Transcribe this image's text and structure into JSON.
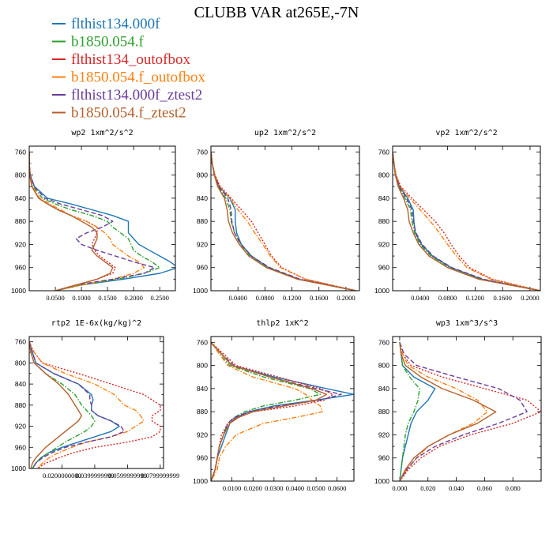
{
  "figure_title": "CLUBB VAR at265E,-7N",
  "legend": [
    {
      "label": "flthist134.000f",
      "color": "#1f77b4",
      "dash": "solid"
    },
    {
      "label": "b1850.054.f",
      "color": "#2ca02c",
      "dash": "dashdot"
    },
    {
      "label": "flthist134_outofbox",
      "color": "#d62728",
      "dash": "dotted"
    },
    {
      "label": "b1850.054.f_outofbox",
      "color": "#ff7f0e",
      "dash": "dashdot"
    },
    {
      "label": "flthist134.000f_ztest2",
      "color": "#6a3d9a",
      "dash": "dashed"
    },
    {
      "label": "b1850.054.f_ztest2",
      "color": "#b5602b",
      "dash": "solid"
    }
  ],
  "chart_data": [
    {
      "type": "line",
      "title": "wp2  1xm^2/s^2",
      "ylim": [
        1000,
        750
      ],
      "yticks": [
        "760",
        "800",
        "840",
        "880",
        "920",
        "960",
        "1000"
      ],
      "xlim": [
        0,
        0.28
      ],
      "xticks": [
        0.05,
        0.1,
        0.15,
        0.2,
        0.25
      ],
      "xtick_labels": [
        "0.0500",
        "0.1000",
        "0.1500",
        "0.2000",
        "0.2500"
      ],
      "levels": [
        760,
        780,
        800,
        820,
        840,
        850,
        860,
        870,
        880,
        890,
        900,
        910,
        920,
        930,
        940,
        950,
        960,
        970,
        980,
        990,
        1000
      ],
      "series": [
        {
          "values": [
            0,
            0,
            0.002,
            0.01,
            0.035,
            0.08,
            0.12,
            0.16,
            0.19,
            0.19,
            0.19,
            0.2,
            0.21,
            0.23,
            0.25,
            0.27,
            0.285,
            0.25,
            0.18,
            0.1,
            0.05
          ]
        },
        {
          "values": [
            0,
            0,
            0.002,
            0.008,
            0.025,
            0.05,
            0.08,
            0.12,
            0.15,
            0.16,
            0.175,
            0.19,
            0.195,
            0.2,
            0.215,
            0.235,
            0.25,
            0.22,
            0.17,
            0.1,
            0.05
          ]
        },
        {
          "values": [
            0,
            0,
            0.001,
            0.005,
            0.018,
            0.035,
            0.055,
            0.08,
            0.11,
            0.13,
            0.13,
            0.125,
            0.12,
            0.125,
            0.135,
            0.15,
            0.165,
            0.16,
            0.13,
            0.09,
            0.05
          ]
        },
        {
          "values": [
            0,
            0,
            0.002,
            0.006,
            0.02,
            0.04,
            0.06,
            0.08,
            0.11,
            0.13,
            0.145,
            0.155,
            0.16,
            0.175,
            0.19,
            0.21,
            0.22,
            0.2,
            0.16,
            0.1,
            0.05
          ]
        },
        {
          "values": [
            0,
            0,
            0.002,
            0.01,
            0.03,
            0.06,
            0.1,
            0.14,
            0.16,
            0.14,
            0.11,
            0.09,
            0.1,
            0.13,
            0.165,
            0.2,
            0.24,
            0.22,
            0.16,
            0.09,
            0.05
          ]
        },
        {
          "values": [
            0,
            0,
            0.001,
            0.005,
            0.018,
            0.035,
            0.055,
            0.08,
            0.1,
            0.12,
            0.13,
            0.13,
            0.125,
            0.12,
            0.13,
            0.145,
            0.16,
            0.155,
            0.13,
            0.09,
            0.05
          ]
        }
      ]
    },
    {
      "type": "line",
      "title": "up2  1xm^2/s^2",
      "ylim": [
        1000,
        750
      ],
      "yticks": [
        "760",
        "800",
        "840",
        "880",
        "920",
        "960",
        "1000"
      ],
      "xlim": [
        0,
        0.22
      ],
      "xticks": [
        0.04,
        0.08,
        0.12,
        0.16,
        0.2
      ],
      "xtick_labels": [
        "0.0400",
        "0.0800",
        "0.1200",
        "0.1600",
        "0.2000"
      ],
      "levels": [
        760,
        780,
        800,
        820,
        840,
        860,
        880,
        900,
        920,
        940,
        960,
        980,
        1000
      ],
      "series": [
        {
          "values": [
            0,
            0.002,
            0.005,
            0.012,
            0.028,
            0.036,
            0.036,
            0.038,
            0.045,
            0.06,
            0.085,
            0.13,
            0.215
          ]
        },
        {
          "values": [
            0,
            0.002,
            0.005,
            0.011,
            0.022,
            0.028,
            0.03,
            0.035,
            0.044,
            0.058,
            0.085,
            0.13,
            0.215
          ]
        },
        {
          "values": [
            0,
            0.002,
            0.006,
            0.014,
            0.03,
            0.045,
            0.06,
            0.07,
            0.08,
            0.09,
            0.105,
            0.14,
            0.215
          ]
        },
        {
          "values": [
            0,
            0.002,
            0.006,
            0.013,
            0.028,
            0.04,
            0.054,
            0.065,
            0.077,
            0.088,
            0.103,
            0.14,
            0.215
          ]
        },
        {
          "values": [
            0,
            0.002,
            0.005,
            0.012,
            0.025,
            0.03,
            0.031,
            0.035,
            0.045,
            0.06,
            0.087,
            0.132,
            0.215
          ]
        },
        {
          "values": [
            0,
            0.002,
            0.005,
            0.01,
            0.02,
            0.024,
            0.026,
            0.032,
            0.042,
            0.056,
            0.082,
            0.128,
            0.215
          ]
        }
      ]
    },
    {
      "type": "line",
      "title": "vp2  1xm^2/s^2",
      "ylim": [
        1000,
        750
      ],
      "yticks": [
        "760",
        "800",
        "840",
        "880",
        "920",
        "960",
        "1000"
      ],
      "xlim": [
        0,
        0.215
      ],
      "xticks": [
        0.04,
        0.08,
        0.12,
        0.16,
        0.2
      ],
      "xtick_labels": [
        "0.0400",
        "0.0800",
        "0.1200",
        "0.1600",
        "0.2000"
      ],
      "levels": [
        760,
        780,
        800,
        820,
        840,
        860,
        880,
        900,
        920,
        940,
        960,
        980,
        1000
      ],
      "series": [
        {
          "values": [
            0,
            0.002,
            0.004,
            0.01,
            0.022,
            0.03,
            0.031,
            0.033,
            0.042,
            0.058,
            0.085,
            0.13,
            0.215
          ]
        },
        {
          "values": [
            0,
            0.002,
            0.004,
            0.009,
            0.018,
            0.026,
            0.028,
            0.032,
            0.04,
            0.056,
            0.083,
            0.128,
            0.215
          ]
        },
        {
          "values": [
            0,
            0.002,
            0.005,
            0.012,
            0.028,
            0.045,
            0.062,
            0.075,
            0.085,
            0.097,
            0.112,
            0.145,
            0.215
          ]
        },
        {
          "values": [
            0,
            0.002,
            0.005,
            0.011,
            0.025,
            0.04,
            0.055,
            0.068,
            0.08,
            0.093,
            0.108,
            0.143,
            0.215
          ]
        },
        {
          "values": [
            0,
            0.002,
            0.004,
            0.01,
            0.02,
            0.028,
            0.03,
            0.034,
            0.043,
            0.059,
            0.086,
            0.132,
            0.215
          ]
        },
        {
          "values": [
            0,
            0.002,
            0.004,
            0.008,
            0.016,
            0.022,
            0.024,
            0.03,
            0.038,
            0.053,
            0.08,
            0.125,
            0.215
          ]
        }
      ]
    },
    {
      "type": "line",
      "title": "rtp2  1E-6x(kg/kg)^2",
      "ylim": [
        1000,
        750
      ],
      "yticks": [
        "760",
        "800",
        "840",
        "880",
        "920",
        "960",
        "1000"
      ],
      "xlim": [
        0,
        0.082
      ],
      "xticks": [
        0.02,
        0.04,
        0.06,
        0.08
      ],
      "xtick_labels": [
        "0.0200000000",
        "0.0399999999",
        "0.0599999999",
        "0.0799999999"
      ],
      "levels": [
        760,
        780,
        800,
        820,
        840,
        860,
        870,
        880,
        890,
        900,
        910,
        920,
        930,
        940,
        950,
        960,
        970,
        980,
        990,
        1000
      ],
      "series": [
        {
          "values": [
            0,
            0.002,
            0.004,
            0.015,
            0.03,
            0.038,
            0.039,
            0.038,
            0.038,
            0.042,
            0.05,
            0.055,
            0.05,
            0.04,
            0.03,
            0.02,
            0.012,
            0.007,
            0.004,
            0.002
          ]
        },
        {
          "values": [
            0,
            0.001,
            0.003,
            0.01,
            0.02,
            0.028,
            0.03,
            0.032,
            0.035,
            0.038,
            0.04,
            0.038,
            0.034,
            0.028,
            0.022,
            0.017,
            0.012,
            0.007,
            0.004,
            0.002
          ]
        },
        {
          "values": [
            0,
            0.003,
            0.008,
            0.03,
            0.05,
            0.07,
            0.075,
            0.08,
            0.08,
            0.075,
            0.075,
            0.08,
            0.08,
            0.075,
            0.06,
            0.04,
            0.027,
            0.018,
            0.01,
            0.005
          ]
        },
        {
          "values": [
            0,
            0.003,
            0.008,
            0.022,
            0.04,
            0.052,
            0.055,
            0.058,
            0.065,
            0.068,
            0.07,
            0.065,
            0.06,
            0.05,
            0.035,
            0.026,
            0.018,
            0.012,
            0.008,
            0.005
          ]
        },
        {
          "values": [
            0,
            0.002,
            0.004,
            0.015,
            0.03,
            0.037,
            0.037,
            0.038,
            0.038,
            0.042,
            0.05,
            0.056,
            0.058,
            0.05,
            0.035,
            0.022,
            0.014,
            0.008,
            0.004,
            0.002
          ]
        },
        {
          "values": [
            0,
            0.001,
            0.003,
            0.01,
            0.018,
            0.024,
            0.026,
            0.028,
            0.03,
            0.032,
            0.03,
            0.026,
            0.022,
            0.018,
            0.014,
            0.01,
            0.007,
            0.004,
            0.002,
            0.001
          ]
        }
      ]
    },
    {
      "type": "line",
      "title": "thlp2  1xK^2",
      "ylim": [
        1000,
        750
      ],
      "yticks": [
        "760",
        "800",
        "840",
        "880",
        "920",
        "960",
        "1000"
      ],
      "xlim": [
        0,
        0.068
      ],
      "xticks": [
        0.01,
        0.02,
        0.03,
        0.04,
        0.05,
        0.06
      ],
      "xtick_labels": [
        "0.0100",
        "0.0200",
        "0.0300",
        "0.0400",
        "0.0500",
        "0.0600"
      ],
      "levels": [
        760,
        780,
        800,
        820,
        840,
        850,
        860,
        870,
        880,
        890,
        900,
        920,
        940,
        960,
        980,
        1000
      ],
      "series": [
        {
          "values": [
            0,
            0.005,
            0.01,
            0.03,
            0.055,
            0.068,
            0.05,
            0.03,
            0.018,
            0.012,
            0.009,
            0.007,
            0.005,
            0.003,
            0.002,
            0
          ]
        },
        {
          "values": [
            0,
            0.004,
            0.009,
            0.025,
            0.047,
            0.052,
            0.04,
            0.025,
            0.016,
            0.011,
            0.008,
            0.006,
            0.004,
            0.003,
            0.002,
            0
          ]
        },
        {
          "values": [
            0,
            0.006,
            0.012,
            0.032,
            0.052,
            0.058,
            0.054,
            0.04,
            0.02,
            0.012,
            0.008,
            0.005,
            0.004,
            0.003,
            0.002,
            0
          ]
        },
        {
          "values": [
            0,
            0.004,
            0.008,
            0.02,
            0.04,
            0.045,
            0.048,
            0.052,
            0.053,
            0.04,
            0.025,
            0.012,
            0.007,
            0.004,
            0.003,
            0
          ]
        },
        {
          "values": [
            0,
            0.005,
            0.011,
            0.028,
            0.05,
            0.062,
            0.052,
            0.032,
            0.018,
            0.011,
            0.008,
            0.006,
            0.004,
            0.003,
            0.002,
            0
          ]
        },
        {
          "values": [
            0,
            0.005,
            0.01,
            0.028,
            0.048,
            0.055,
            0.05,
            0.035,
            0.02,
            0.013,
            0.009,
            0.006,
            0.004,
            0.003,
            0.002,
            0
          ]
        }
      ]
    },
    {
      "type": "line",
      "title": "wp3  1xm^3/s^3",
      "ylim": [
        1000,
        750
      ],
      "yticks": [
        "760",
        "800",
        "840",
        "880",
        "920",
        "960",
        "1000"
      ],
      "xlim": [
        -0.005,
        0.1
      ],
      "xticks": [
        0.0,
        0.02,
        0.04,
        0.06,
        0.08
      ],
      "xtick_labels": [
        "0.000",
        "0.020",
        "0.040",
        "0.060",
        "0.080"
      ],
      "levels": [
        760,
        780,
        800,
        820,
        840,
        860,
        880,
        900,
        920,
        940,
        960,
        980,
        1000
      ],
      "series": [
        {
          "values": [
            0,
            0.001,
            0.002,
            0.01,
            0.025,
            0.02,
            0.012,
            0.008,
            0.006,
            0.004,
            0.002,
            0.001,
            0
          ]
        },
        {
          "values": [
            0,
            0.001,
            0.002,
            0.007,
            0.014,
            0.013,
            0.01,
            0.006,
            0.004,
            0.003,
            0.002,
            0.001,
            0
          ]
        },
        {
          "values": [
            0,
            0.002,
            0.008,
            0.03,
            0.06,
            0.09,
            0.1,
            0.08,
            0.05,
            0.028,
            0.015,
            0.006,
            0
          ]
        },
        {
          "values": [
            0,
            0.002,
            0.006,
            0.02,
            0.04,
            0.055,
            0.062,
            0.052,
            0.035,
            0.02,
            0.012,
            0.005,
            0
          ]
        },
        {
          "values": [
            0,
            0.003,
            0.012,
            0.04,
            0.07,
            0.085,
            0.09,
            0.07,
            0.045,
            0.025,
            0.012,
            0.005,
            0
          ]
        },
        {
          "values": [
            0,
            0.001,
            0.004,
            0.015,
            0.03,
            0.052,
            0.068,
            0.055,
            0.035,
            0.02,
            0.01,
            0.004,
            0
          ]
        }
      ]
    }
  ]
}
